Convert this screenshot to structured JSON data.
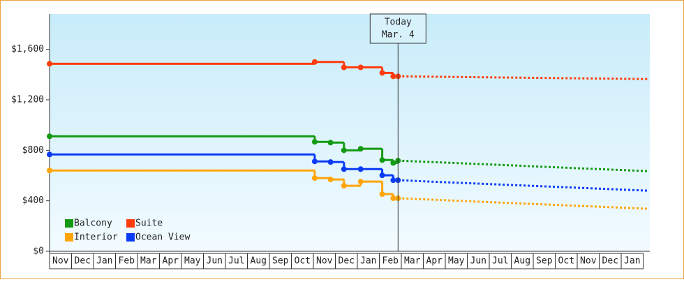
{
  "chart_data": {
    "type": "step",
    "categories": [
      "Nov",
      "Dec",
      "Jan",
      "Feb",
      "Mar",
      "Apr",
      "May",
      "Jun",
      "Jul",
      "Aug",
      "Sep",
      "Oct",
      "Nov",
      "Dec",
      "Jan",
      "Feb",
      "Mar",
      "Apr",
      "May",
      "Jun",
      "Jul",
      "Aug",
      "Sep",
      "Oct",
      "Nov",
      "Dec",
      "Jan"
    ],
    "xlim": [
      0,
      27.3
    ],
    "ylim": [
      0,
      1880
    ],
    "yticks": [
      {
        "value": 0,
        "label": "$0"
      },
      {
        "value": 400,
        "label": "$400"
      },
      {
        "value": 800,
        "label": "$800"
      },
      {
        "value": 1200,
        "label": "$1,200"
      },
      {
        "value": 1600,
        "label": "$1,600"
      }
    ],
    "grid": false,
    "legend": "lower left",
    "annotation": {
      "x": 15.85,
      "lines": [
        "Today",
        "Mar. 4"
      ]
    },
    "series": [
      {
        "name": "Balcony",
        "color": "#139a13",
        "x": [
          0,
          12.06,
          12.78,
          13.39,
          14.15,
          15.13,
          15.63,
          15.85
        ],
        "values": [
          911,
          867,
          861,
          800,
          812,
          723,
          700,
          718
        ],
        "forecast_x": [
          15.85,
          27.22
        ],
        "forecast_values": [
          718,
          635
        ]
      },
      {
        "name": "Suite",
        "color": "#ff3c0d",
        "x": [
          0,
          12.06,
          13.39,
          14.15,
          15.13,
          15.63,
          15.85
        ],
        "values": [
          1485,
          1500,
          1457,
          1457,
          1413,
          1386,
          1386
        ],
        "forecast_x": [
          15.85,
          27.22
        ],
        "forecast_values": [
          1386,
          1364
        ]
      },
      {
        "name": "Interior",
        "color": "#ffa50a",
        "x": [
          0,
          12.06,
          12.78,
          13.39,
          14.15,
          15.13,
          15.63,
          15.85
        ],
        "values": [
          640,
          580,
          569,
          519,
          552,
          453,
          420,
          420
        ],
        "forecast_x": [
          15.85,
          27.22
        ],
        "forecast_values": [
          420,
          337
        ]
      },
      {
        "name": "Ocean View",
        "color": "#0a3cf5",
        "x": [
          0,
          12.06,
          12.78,
          13.39,
          14.15,
          15.13,
          15.63,
          15.85
        ],
        "values": [
          767,
          712,
          707,
          651,
          651,
          602,
          563,
          563
        ],
        "forecast_x": [
          15.85,
          27.22
        ],
        "forecast_values": [
          563,
          480
        ]
      }
    ]
  }
}
